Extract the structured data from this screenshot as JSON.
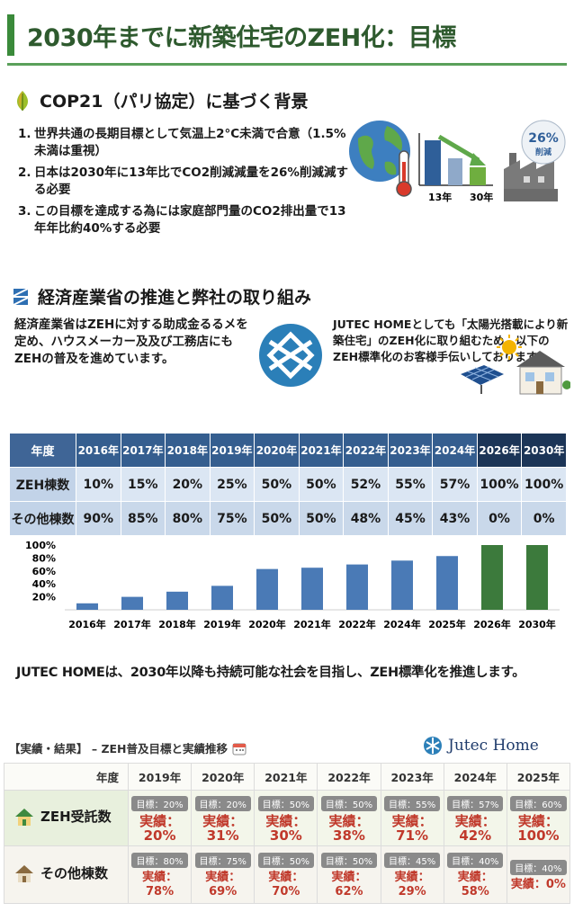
{
  "title": "2030年までに新築住宅のZEH化：目標",
  "background": {
    "heading": "COP21（パリ協定）に基づく背景",
    "items": [
      {
        "num": "1.",
        "text": "世界共通の長期目標として気温上2°C未満で合意（1.5%未満は重視）"
      },
      {
        "num": "2.",
        "text": "日本は2030年に13年比でCO2削減減量を26%削減減する必要"
      },
      {
        "num": "3.",
        "text": "この目標を達成する為には家庭部門量のCO2排出量で13年年比約40%する必要"
      }
    ],
    "graphic": {
      "label_left": "13年",
      "label_right": "30年",
      "badge_value": "26%",
      "badge_label": "削減"
    }
  },
  "meti": {
    "heading": "経済産業省の推進と弊社の取り組み",
    "left_text": "経済産業省はZEHに対する助成金るるメを定め、ハウスメーカー及及び工務店にもZEHの普及を進めています。",
    "right_text": "JUTEC HOMEとしても「太陽光搭載により新築住宅」のZEH化に取り組むため、以下のZEH標準化のお客様手伝いしております。"
  },
  "zeh_table": {
    "header_label": "年度",
    "years": [
      "2016年",
      "2017年",
      "2018年",
      "2019年",
      "2020年",
      "2021年",
      "2022年",
      "2023年",
      "2024年",
      "2026年",
      "2030年"
    ],
    "rows": [
      {
        "label": "ZEH棟数",
        "values": [
          "10%",
          "15%",
          "20%",
          "25%",
          "50%",
          "50%",
          "52%",
          "55%",
          "57%",
          "100%",
          "100%"
        ]
      },
      {
        "label": "その他棟数",
        "values": [
          "90%",
          "85%",
          "80%",
          "75%",
          "50%",
          "50%",
          "48%",
          "45%",
          "43%",
          "0%",
          "0%"
        ]
      }
    ]
  },
  "chart_data": {
    "type": "bar",
    "categories": [
      "2016年",
      "2017年",
      "2018年",
      "2019年",
      "2020年",
      "2021年",
      "2022年",
      "2024年",
      "2025年",
      "2026年",
      "2030年"
    ],
    "values": [
      10,
      20,
      28,
      37,
      63,
      65,
      70,
      76,
      83,
      100,
      100
    ],
    "y_ticks": [
      "100%",
      "80%",
      "60%",
      "40%",
      "20%"
    ],
    "ylim": [
      0,
      100
    ],
    "colors": {
      "blue": "#4a7ab6",
      "green": "#3c7a3c"
    },
    "green_from_index": 9,
    "grid": false
  },
  "statement": "JUTEC HOMEは、2030年以降も持続可能な社会を目指し、ZEH標準化を推進します。",
  "results": {
    "heading": "【実績・結果】 – ZEH普及目標と実績推移",
    "brand": "Jutec Home",
    "header_label": "年度",
    "years": [
      "2019年",
      "2020年",
      "2021年",
      "2022年",
      "2023年",
      "2024年",
      "2025年"
    ],
    "rows": [
      {
        "label": "ZEH受託数",
        "cells": [
          {
            "target": "目標：20%",
            "actual": "実績：20%"
          },
          {
            "target": "目標：20%",
            "actual": "実績：31%"
          },
          {
            "target": "目標：50%",
            "actual": "実績：30%"
          },
          {
            "target": "目標：50%",
            "actual": "実績：38%"
          },
          {
            "target": "目標：55%",
            "actual": "実績：71%"
          },
          {
            "target": "目標：57%",
            "actual": "実績：42%"
          },
          {
            "target": "目標：60%",
            "actual": "実績：100%"
          }
        ]
      },
      {
        "label": "その他棟数",
        "cells": [
          {
            "target": "目標：80%",
            "actual": "実績：78%"
          },
          {
            "target": "目標：75%",
            "actual": "実績：69%"
          },
          {
            "target": "目標：50%",
            "actual": "実績：70%"
          },
          {
            "target": "目標：50%",
            "actual": "実績：62%"
          },
          {
            "target": "目標：45%",
            "actual": "実績：29%"
          },
          {
            "target": "目標：40%",
            "actual": "実績：58%"
          },
          {
            "target": "目標：40%",
            "actual": "実績：0%"
          }
        ]
      }
    ]
  }
}
